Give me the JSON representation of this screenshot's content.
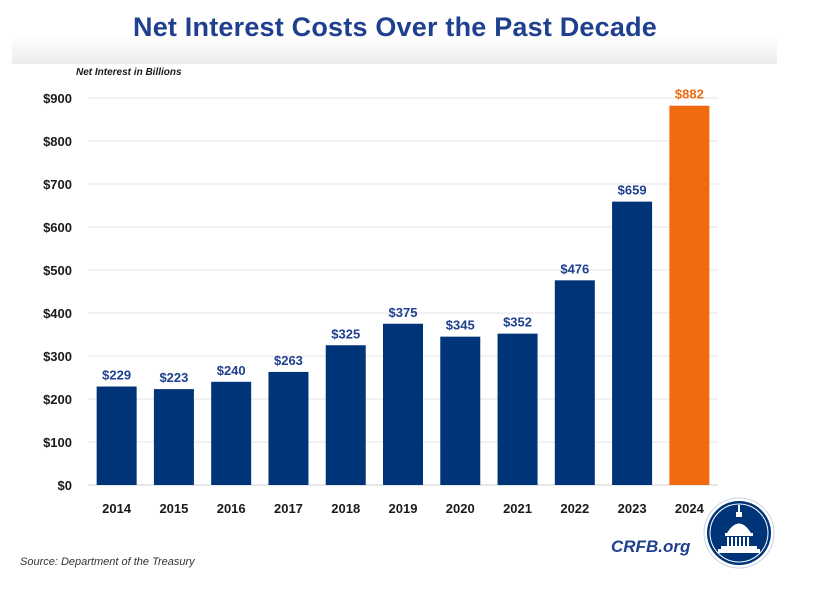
{
  "chart_data": {
    "type": "bar",
    "title": "Net Interest Costs Over the Past Decade",
    "ylabel": "Net Interest in Billions",
    "xlabel": "",
    "categories": [
      "2014",
      "2015",
      "2016",
      "2017",
      "2018",
      "2019",
      "2020",
      "2021",
      "2022",
      "2023",
      "2024"
    ],
    "values": [
      229,
      223,
      240,
      263,
      325,
      375,
      345,
      352,
      476,
      659,
      882
    ],
    "value_labels": [
      "$229",
      "$223",
      "$240",
      "$263",
      "$325",
      "$375",
      "$345",
      "$352",
      "$476",
      "$659",
      "$882"
    ],
    "ylim": [
      0,
      900
    ],
    "yticks": [
      "$0",
      "$100",
      "$200",
      "$300",
      "$400",
      "$500",
      "$600",
      "$700",
      "$800",
      "$900"
    ],
    "grid": true,
    "colors": {
      "bar": "#003478",
      "highlight": "#f26a0e",
      "label": "#1f3f8f"
    },
    "highlight_index": 10
  },
  "source": "Source: Department of the Treasury",
  "brand": "CRFB.org",
  "logo_icon": "capitol-dome-seal-icon"
}
